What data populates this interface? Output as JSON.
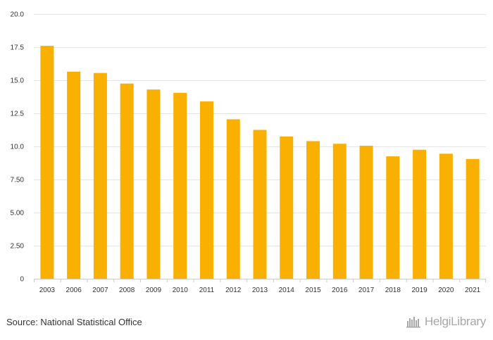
{
  "chart_data": {
    "type": "bar",
    "categories": [
      "2003",
      "2006",
      "2007",
      "2008",
      "2009",
      "2010",
      "2011",
      "2012",
      "2013",
      "2014",
      "2015",
      "2016",
      "2017",
      "2018",
      "2019",
      "2020",
      "2021"
    ],
    "values": [
      17.6,
      15.65,
      15.55,
      14.75,
      14.3,
      14.05,
      13.4,
      12.05,
      11.25,
      10.75,
      10.4,
      10.2,
      10.05,
      9.25,
      9.75,
      9.45,
      9.05
    ],
    "yticks": [
      "0",
      "2.50",
      "5.00",
      "7.50",
      "10.0",
      "12.5",
      "15.0",
      "17.5",
      "20.0"
    ],
    "ylim": [
      0,
      20
    ],
    "grid": true,
    "bar_color": "#f9b000",
    "grid_color": "#e6e6e6"
  },
  "footer": {
    "source": "Source: National Statistical Office",
    "logo_text": "HelgiLibrary",
    "logo_icon": "skyline-icon"
  }
}
